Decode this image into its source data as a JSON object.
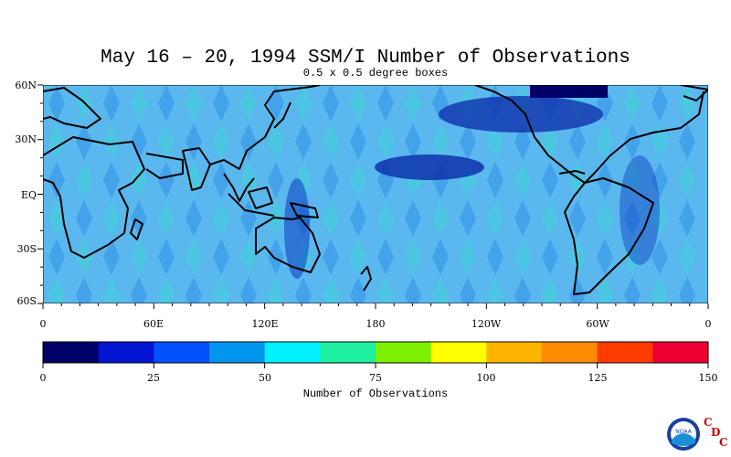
{
  "title": "May 16 – 20, 1994 SSM/I Number of Observations",
  "subtitle": "0.5 x 0.5 degree boxes",
  "map": {
    "lat_labels": [
      "60N",
      "30N",
      "EQ",
      "30S",
      "60S"
    ],
    "lon_labels": [
      "0",
      "60E",
      "120E",
      "180",
      "120W",
      "60W",
      "0"
    ],
    "lat_range": [
      -60,
      60
    ],
    "lon_range": [
      0,
      360
    ],
    "background_color": "#5bb8ee",
    "coastline_color": "#000000"
  },
  "colorbar": {
    "title": "Number of Observations",
    "tick_labels": [
      "0",
      "25",
      "50",
      "75",
      "100",
      "125",
      "150"
    ],
    "range": [
      0,
      150
    ],
    "colors": [
      "#000066",
      "#0014d2",
      "#0050ff",
      "#0096f0",
      "#00f0ff",
      "#1ef0a0",
      "#7df000",
      "#ffff00",
      "#ffb400",
      "#ff8c00",
      "#ff3c00",
      "#f00032"
    ]
  },
  "logo": {
    "emblem_text": "NOAA",
    "letters": [
      "C",
      "D",
      "C"
    ]
  }
}
